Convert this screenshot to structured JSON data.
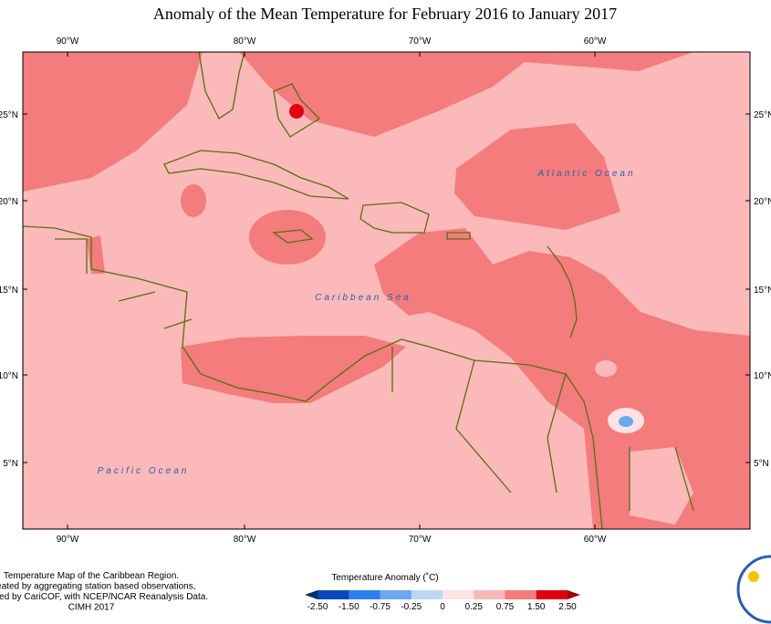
{
  "header": {
    "title": "Anomaly of the Mean Temperature for February 2016 to January 2017"
  },
  "map": {
    "lon_ticks": [
      "90°W",
      "80°W",
      "70°W",
      "60°W"
    ],
    "lat_ticks": [
      "25°N",
      "20°N",
      "15°N",
      "10°N",
      "5°N"
    ],
    "labels": {
      "atlantic": "Atlantic Ocean",
      "caribbean": "Caribbean Sea",
      "pacific": "Pacific Ocean"
    }
  },
  "colorbar": {
    "title": "Temperature Anomaly (˚C)",
    "ticks": [
      "-2.50",
      "-1.50",
      "-0.75",
      "-0.25",
      "0",
      "0.25",
      "0.75",
      "1.50",
      "2.50"
    ],
    "colors": [
      "#08306b",
      "#0b47b8",
      "#2a7fec",
      "#6aa8f2",
      "#bcd6f7",
      "#fde3e3",
      "#f9b9b9",
      "#f47c7c",
      "#e00010",
      "#a00010"
    ]
  },
  "footer": {
    "lines": [
      "Temperature Map of the Caribbean Region.",
      "Created by aggregating station based observations,",
      "provided by CariCOF, with NCEP/NCAR Reanalysis Data.",
      "CIMH 2017"
    ]
  }
}
